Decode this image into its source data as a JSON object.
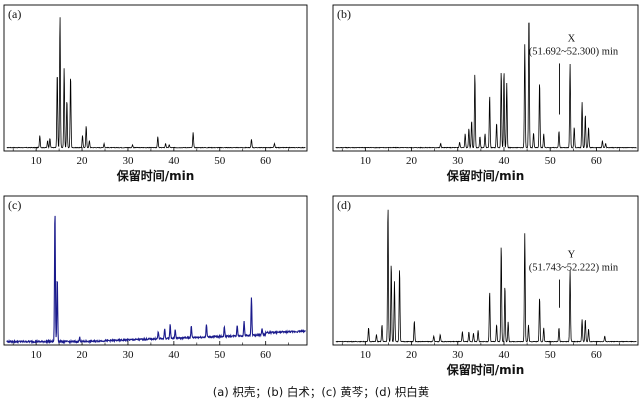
{
  "caption": "(a) 枳壳；(b) 白术；(c) 黄芩；(d) 枳白黄",
  "chart_data": [
    {
      "panel": "(a)",
      "type": "line",
      "xlabel": "保留时间/min",
      "xlim": [
        3,
        69
      ],
      "xticks": [
        10,
        20,
        30,
        40,
        50,
        60
      ],
      "ylim": [
        0,
        1.0
      ],
      "color": "#000000",
      "baseline_slope": 0.0,
      "noise": 0.004,
      "peaks": [
        {
          "x": 10.8,
          "h": 0.09
        },
        {
          "x": 12.5,
          "h": 0.05
        },
        {
          "x": 13.0,
          "h": 0.07
        },
        {
          "x": 14.6,
          "h": 0.55
        },
        {
          "x": 15.2,
          "h": 0.96
        },
        {
          "x": 16.1,
          "h": 0.58
        },
        {
          "x": 16.7,
          "h": 0.35
        },
        {
          "x": 17.5,
          "h": 0.53
        },
        {
          "x": 20.1,
          "h": 0.09
        },
        {
          "x": 20.9,
          "h": 0.16
        },
        {
          "x": 21.6,
          "h": 0.05
        },
        {
          "x": 24.8,
          "h": 0.03
        },
        {
          "x": 31.0,
          "h": 0.02
        },
        {
          "x": 36.5,
          "h": 0.08
        },
        {
          "x": 38.2,
          "h": 0.03
        },
        {
          "x": 39.0,
          "h": 0.02
        },
        {
          "x": 44.2,
          "h": 0.11
        },
        {
          "x": 56.9,
          "h": 0.06
        },
        {
          "x": 61.9,
          "h": 0.03
        }
      ]
    },
    {
      "panel": "(b)",
      "type": "line",
      "xlabel": "保留时间/min",
      "xlim": [
        3,
        69
      ],
      "xticks": [
        10,
        20,
        30,
        40,
        50,
        60
      ],
      "ylim": [
        0,
        1.0
      ],
      "color": "#000000",
      "baseline_slope": 0.0,
      "noise": 0.004,
      "annotation": {
        "label": "X",
        "range": "(51.692~52.300) min",
        "x": 52.0,
        "line_from": 0.25,
        "line_to": 0.62
      },
      "peaks": [
        {
          "x": 26.3,
          "h": 0.03
        },
        {
          "x": 30.4,
          "h": 0.04
        },
        {
          "x": 31.6,
          "h": 0.1
        },
        {
          "x": 32.4,
          "h": 0.14
        },
        {
          "x": 33.0,
          "h": 0.2
        },
        {
          "x": 33.7,
          "h": 0.54
        },
        {
          "x": 34.8,
          "h": 0.08
        },
        {
          "x": 35.9,
          "h": 0.1
        },
        {
          "x": 36.9,
          "h": 0.38
        },
        {
          "x": 38.4,
          "h": 0.18
        },
        {
          "x": 39.4,
          "h": 0.56
        },
        {
          "x": 40.0,
          "h": 0.56
        },
        {
          "x": 40.6,
          "h": 0.47
        },
        {
          "x": 44.5,
          "h": 0.75
        },
        {
          "x": 45.4,
          "h": 0.98
        },
        {
          "x": 46.4,
          "h": 0.11
        },
        {
          "x": 47.7,
          "h": 0.48
        },
        {
          "x": 48.6,
          "h": 0.1
        },
        {
          "x": 51.9,
          "h": 0.12
        },
        {
          "x": 54.3,
          "h": 0.61
        },
        {
          "x": 55.2,
          "h": 0.15
        },
        {
          "x": 56.9,
          "h": 0.33
        },
        {
          "x": 57.6,
          "h": 0.24
        },
        {
          "x": 58.3,
          "h": 0.15
        },
        {
          "x": 61.3,
          "h": 0.05
        },
        {
          "x": 62.0,
          "h": 0.03
        }
      ]
    },
    {
      "panel": "(c)",
      "type": "line",
      "xlabel": "",
      "xlim": [
        3,
        69
      ],
      "xticks": [
        10,
        20,
        30,
        40,
        50,
        60
      ],
      "ylim": [
        0,
        1.0
      ],
      "color": "#1a1a8c",
      "baseline_slope": 0.0012,
      "noise": 0.012,
      "peaks": [
        {
          "x": 14.1,
          "h": 0.94
        },
        {
          "x": 14.6,
          "h": 0.46
        },
        {
          "x": 19.5,
          "h": 0.03
        },
        {
          "x": 36.6,
          "h": 0.05
        },
        {
          "x": 38.0,
          "h": 0.07
        },
        {
          "x": 39.2,
          "h": 0.1
        },
        {
          "x": 40.3,
          "h": 0.06
        },
        {
          "x": 43.8,
          "h": 0.08
        },
        {
          "x": 47.1,
          "h": 0.09
        },
        {
          "x": 51.0,
          "h": 0.07
        },
        {
          "x": 53.8,
          "h": 0.08
        },
        {
          "x": 55.3,
          "h": 0.1
        },
        {
          "x": 56.9,
          "h": 0.27
        },
        {
          "x": 59.2,
          "h": 0.05
        }
      ]
    },
    {
      "panel": "(d)",
      "type": "line",
      "xlabel": "保留时间/min",
      "xlim": [
        3,
        69
      ],
      "xticks": [
        10,
        20,
        30,
        40,
        50,
        60
      ],
      "ylim": [
        0,
        1.0
      ],
      "color": "#000000",
      "baseline_slope": 0.0,
      "noise": 0.004,
      "annotation": {
        "label": "Y",
        "range": "(51.743~52.222) min",
        "x": 52.0,
        "line_from": 0.25,
        "line_to": 0.45
      },
      "peaks": [
        {
          "x": 10.7,
          "h": 0.1
        },
        {
          "x": 12.4,
          "h": 0.05
        },
        {
          "x": 13.6,
          "h": 0.12
        },
        {
          "x": 14.9,
          "h": 0.97
        },
        {
          "x": 15.6,
          "h": 0.56
        },
        {
          "x": 16.3,
          "h": 0.43
        },
        {
          "x": 17.4,
          "h": 0.52
        },
        {
          "x": 20.6,
          "h": 0.15
        },
        {
          "x": 24.8,
          "h": 0.04
        },
        {
          "x": 26.2,
          "h": 0.05
        },
        {
          "x": 31.0,
          "h": 0.07
        },
        {
          "x": 32.4,
          "h": 0.07
        },
        {
          "x": 33.4,
          "h": 0.06
        },
        {
          "x": 34.4,
          "h": 0.08
        },
        {
          "x": 36.9,
          "h": 0.36
        },
        {
          "x": 38.4,
          "h": 0.12
        },
        {
          "x": 39.4,
          "h": 0.69
        },
        {
          "x": 40.2,
          "h": 0.4
        },
        {
          "x": 40.9,
          "h": 0.14
        },
        {
          "x": 44.5,
          "h": 0.77
        },
        {
          "x": 45.3,
          "h": 0.12
        },
        {
          "x": 47.7,
          "h": 0.32
        },
        {
          "x": 48.6,
          "h": 0.1
        },
        {
          "x": 51.9,
          "h": 0.1
        },
        {
          "x": 54.3,
          "h": 0.51
        },
        {
          "x": 56.9,
          "h": 0.16
        },
        {
          "x": 57.6,
          "h": 0.16
        },
        {
          "x": 58.3,
          "h": 0.09
        },
        {
          "x": 61.8,
          "h": 0.04
        }
      ]
    }
  ]
}
